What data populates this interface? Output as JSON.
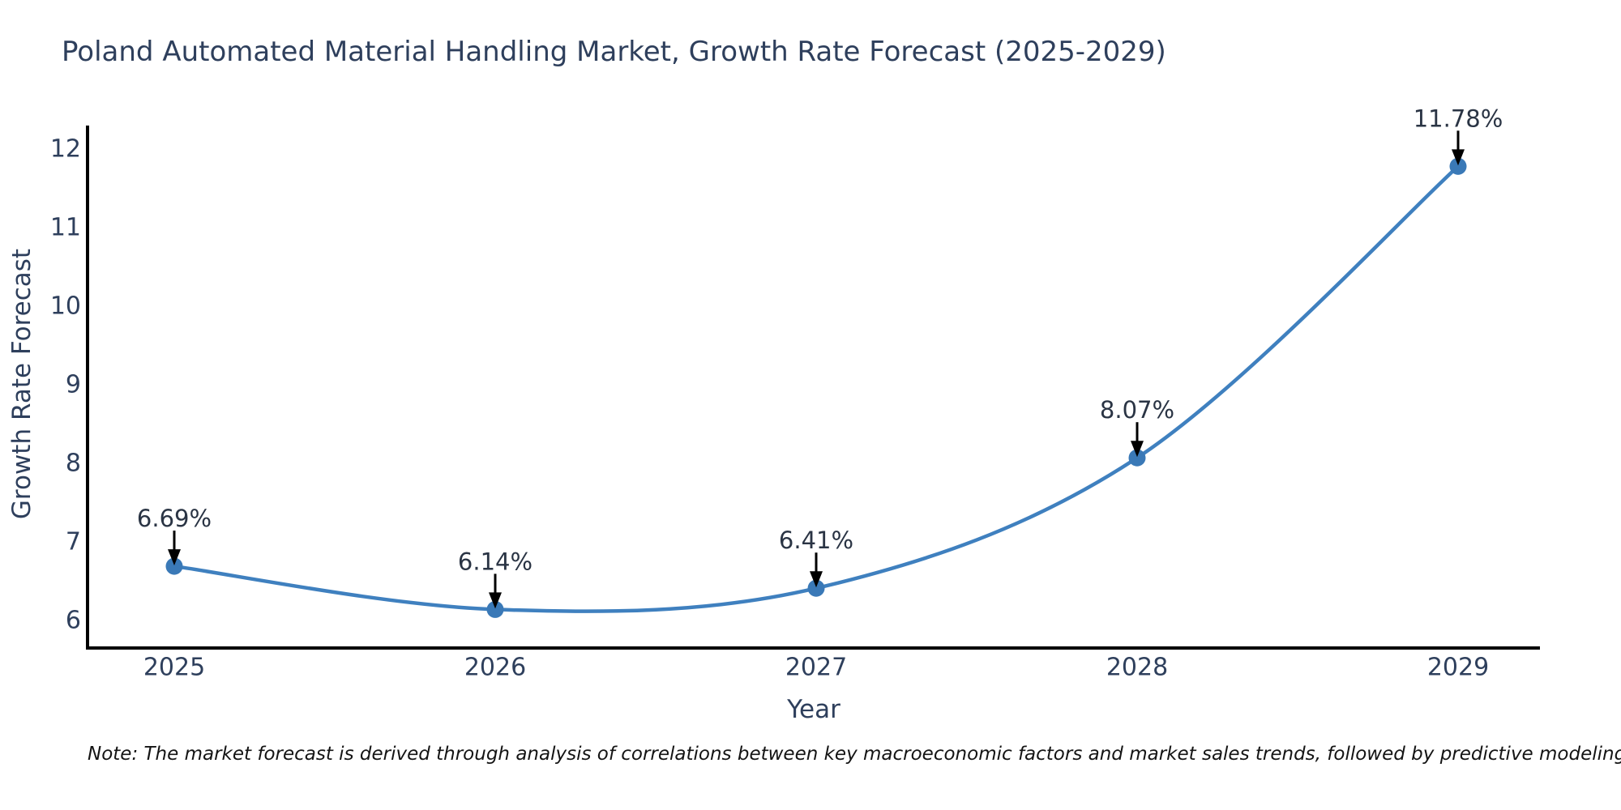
{
  "note": "Note: The market forecast is derived through analysis of correlations between key macroeconomic factors and market sales trends, followed by predictive modeling to project future sales",
  "chart_data": {
    "type": "line",
    "title": "Poland Automated Material Handling Market, Growth Rate Forecast (2025-2029)",
    "series_name": "Growth Rate Forecast",
    "x": [
      "2025",
      "2026",
      "2027",
      "2028",
      "2029"
    ],
    "values": [
      6.69,
      6.14,
      6.41,
      8.07,
      11.78
    ],
    "point_labels": [
      "6.69%",
      "6.14%",
      "6.41%",
      "8.07%",
      "11.78%"
    ],
    "xlabel": "Year",
    "ylabel": "Growth Rate Forecast",
    "yticks": [
      6,
      7,
      8,
      9,
      10,
      11,
      12
    ],
    "ylim": [
      5.65,
      12.35
    ],
    "grid": false,
    "legend": "none",
    "curve": "spline",
    "markers": true,
    "line_color": "#3f80bf",
    "marker_color": "#3a79b7",
    "arrow_color": "#000000",
    "axis_color": "#000000",
    "tick_label_color": "#2e3f5c",
    "annotation_text_color": "#2a3444"
  }
}
